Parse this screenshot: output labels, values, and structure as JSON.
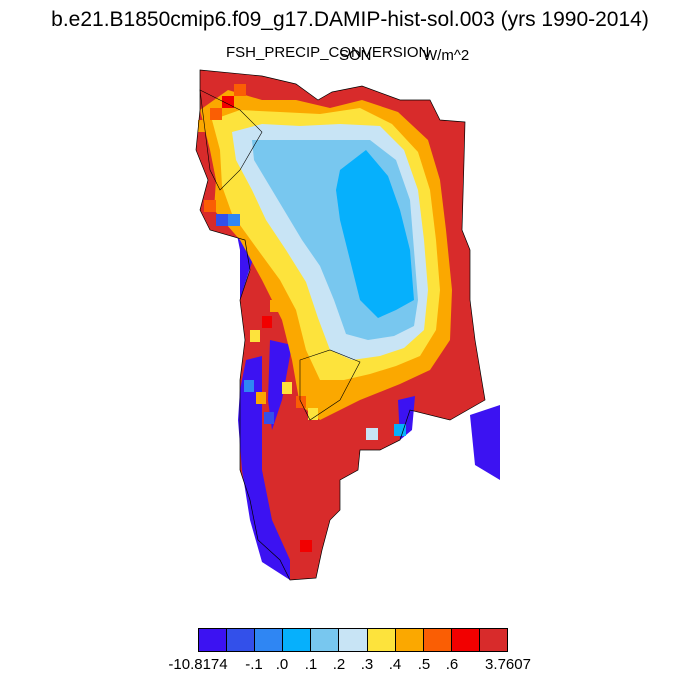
{
  "header": {
    "title": "b.e21.B1850cmip6.f09_g17.DAMIP-hist-sol.003 (yrs 1990-2014)",
    "variable": "FSH_PRECIP_CONVERSION",
    "season": "SON",
    "units": "W/m^2"
  },
  "colorbar": {
    "colors": [
      "#3c12f2",
      "#3350ea",
      "#2f86f3",
      "#06b0fc",
      "#78c7ef",
      "#c8e4f5",
      "#fde33c",
      "#fba800",
      "#fa5e04",
      "#f20000",
      "#d82b2b"
    ],
    "labels": [
      "-10.8174",
      "-.1",
      ".0",
      ".1",
      ".2",
      ".3",
      ".4",
      ".5",
      ".6",
      "3.7607"
    ]
  }
}
